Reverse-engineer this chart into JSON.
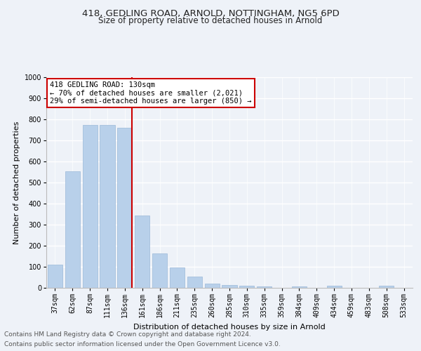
{
  "title1": "418, GEDLING ROAD, ARNOLD, NOTTINGHAM, NG5 6PD",
  "title2": "Size of property relative to detached houses in Arnold",
  "xlabel": "Distribution of detached houses by size in Arnold",
  "ylabel": "Number of detached properties",
  "categories": [
    "37sqm",
    "62sqm",
    "87sqm",
    "111sqm",
    "136sqm",
    "161sqm",
    "186sqm",
    "211sqm",
    "235sqm",
    "260sqm",
    "285sqm",
    "310sqm",
    "335sqm",
    "359sqm",
    "384sqm",
    "409sqm",
    "434sqm",
    "459sqm",
    "483sqm",
    "508sqm",
    "533sqm"
  ],
  "values": [
    110,
    555,
    775,
    775,
    760,
    345,
    165,
    98,
    55,
    20,
    14,
    10,
    8,
    0,
    6,
    0,
    10,
    0,
    0,
    10,
    0
  ],
  "bar_color": "#b8d0ea",
  "bar_edge_color": "#9ab8d8",
  "vline_index": 4,
  "vline_color": "#cc0000",
  "annotation_text": "418 GEDLING ROAD: 130sqm\n← 70% of detached houses are smaller (2,021)\n29% of semi-detached houses are larger (850) →",
  "annotation_box_color": "#ffffff",
  "annotation_box_edge_color": "#cc0000",
  "ylim": [
    0,
    1000
  ],
  "yticks": [
    0,
    100,
    200,
    300,
    400,
    500,
    600,
    700,
    800,
    900,
    1000
  ],
  "footer1": "Contains HM Land Registry data © Crown copyright and database right 2024.",
  "footer2": "Contains public sector information licensed under the Open Government Licence v3.0.",
  "bg_color": "#eef2f8",
  "grid_color": "#ffffff",
  "title_fontsize": 9.5,
  "subtitle_fontsize": 8.5,
  "tick_fontsize": 7,
  "ylabel_fontsize": 8,
  "xlabel_fontsize": 8,
  "annotation_fontsize": 7.5,
  "footer_fontsize": 6.5
}
